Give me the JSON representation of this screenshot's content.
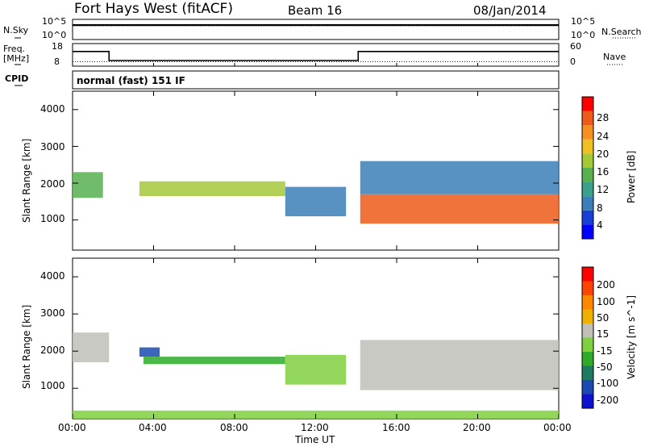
{
  "header": {
    "radar": "Fort Hays West (fitACF)",
    "beam": "Beam 16",
    "date": "08/Jan/2014"
  },
  "noise_panel": {
    "left_label": "N.Sky",
    "left_top": "10^5",
    "left_bottom": "10^0",
    "right_label": "N.Search",
    "right_top": "10^5",
    "right_bottom": "10^0"
  },
  "freq_panel": {
    "left_label_1": "Freq.",
    "left_label_2": "[MHz]",
    "left_top": "18",
    "left_bottom": "8",
    "right_label": "Nave",
    "right_top": "60",
    "right_bottom": "0"
  },
  "cpid": {
    "label": "CPID",
    "program": "normal (fast) 151 IF"
  },
  "power_panel": {
    "ylabel": "Slant Range [km]",
    "yticks": [
      "4000",
      "3000",
      "2000",
      "1000"
    ],
    "colorbar": {
      "label": "Power [dB]",
      "ticks": [
        "28",
        "24",
        "20",
        "16",
        "12",
        "8",
        "4"
      ],
      "colors": [
        "#0000ff",
        "#1a3fd6",
        "#3a7fb8",
        "#3aa08a",
        "#58b050",
        "#a5c838",
        "#f0c020",
        "#f39020",
        "#ef5a1a",
        "#ff0000"
      ]
    }
  },
  "velocity_panel": {
    "ylabel": "Slant Range [km]",
    "yticks": [
      "4000",
      "3000",
      "2000",
      "1000"
    ],
    "colorbar": {
      "label": "Velocity [m s^-1]",
      "ticks": [
        "200",
        "100",
        "50",
        "15",
        "-15",
        "-50",
        "-100",
        "-200"
      ],
      "colors": [
        "#ff0000",
        "#ff4400",
        "#ff8800",
        "#f0b000",
        "#c0c0b8",
        "#7fd040",
        "#2faa2a",
        "#1e7a60",
        "#1a4ab0",
        "#1010d0"
      ]
    }
  },
  "xaxis": {
    "label": "Time UT",
    "ticks": [
      "00:00",
      "04:00",
      "08:00",
      "12:00",
      "16:00",
      "20:00",
      "00:00"
    ]
  },
  "chart_data": [
    {
      "type": "line",
      "name": "noise",
      "x_range_hours": [
        0,
        24
      ],
      "series": [
        {
          "name": "N.Sky",
          "x": [
            0,
            24
          ],
          "y_log10": [
            3.6,
            3.6
          ]
        },
        {
          "name": "N.Search",
          "x": [
            0,
            24
          ],
          "y_log10": [
            3.4,
            3.4
          ]
        }
      ]
    },
    {
      "type": "line",
      "name": "frequency",
      "x_range_hours": [
        0,
        24
      ],
      "ylim_left": [
        8,
        18
      ],
      "ylim_right": [
        0,
        60
      ],
      "series": [
        {
          "name": "Freq.",
          "x": [
            0,
            1.8,
            1.8,
            14.1,
            14.1,
            24
          ],
          "y": [
            14.5,
            14.5,
            10.5,
            10.5,
            14.5,
            14.5
          ]
        },
        {
          "name": "Nave",
          "x": [
            0,
            24
          ],
          "y": [
            12,
            12
          ]
        }
      ]
    },
    {
      "type": "heatmap",
      "name": "power",
      "x_range_hours": [
        0,
        24
      ],
      "ylim_km": [
        180,
        4500
      ],
      "clim_db": [
        0,
        30
      ],
      "features": [
        {
          "x": [
            0.0,
            1.5
          ],
          "range_km": [
            1600,
            2300
          ],
          "value_db": 14
        },
        {
          "x": [
            3.3,
            10.5
          ],
          "range_km": [
            1650,
            2050
          ],
          "value_db": 15
        },
        {
          "x": [
            10.5,
            13.5
          ],
          "range_km": [
            1100,
            1900
          ],
          "value_db": 6
        },
        {
          "x": [
            14.2,
            24.0
          ],
          "range_km": [
            900,
            1700
          ],
          "value_db": 26
        },
        {
          "x": [
            14.2,
            24.0
          ],
          "range_km": [
            1700,
            2600
          ],
          "value_db": 6
        }
      ]
    },
    {
      "type": "heatmap",
      "name": "velocity",
      "x_range_hours": [
        0,
        24
      ],
      "ylim_km": [
        180,
        4500
      ],
      "clim_ms": [
        -250,
        250
      ],
      "features": [
        {
          "x": [
            0.0,
            1.8
          ],
          "range_km": [
            1700,
            2500
          ],
          "value_ms": 0
        },
        {
          "x": [
            3.3,
            4.3
          ],
          "range_km": [
            1850,
            2100
          ],
          "value_ms": -200
        },
        {
          "x": [
            3.5,
            10.5
          ],
          "range_km": [
            1650,
            1850
          ],
          "value_ms": -70
        },
        {
          "x": [
            10.5,
            13.5
          ],
          "range_km": [
            1100,
            1900
          ],
          "value_ms": -40
        },
        {
          "x": [
            14.2,
            24.0
          ],
          "range_km": [
            950,
            2300
          ],
          "value_ms": 0
        },
        {
          "x": [
            0.0,
            24.0
          ],
          "range_km": [
            180,
            400
          ],
          "value_ms": -30
        }
      ]
    }
  ]
}
